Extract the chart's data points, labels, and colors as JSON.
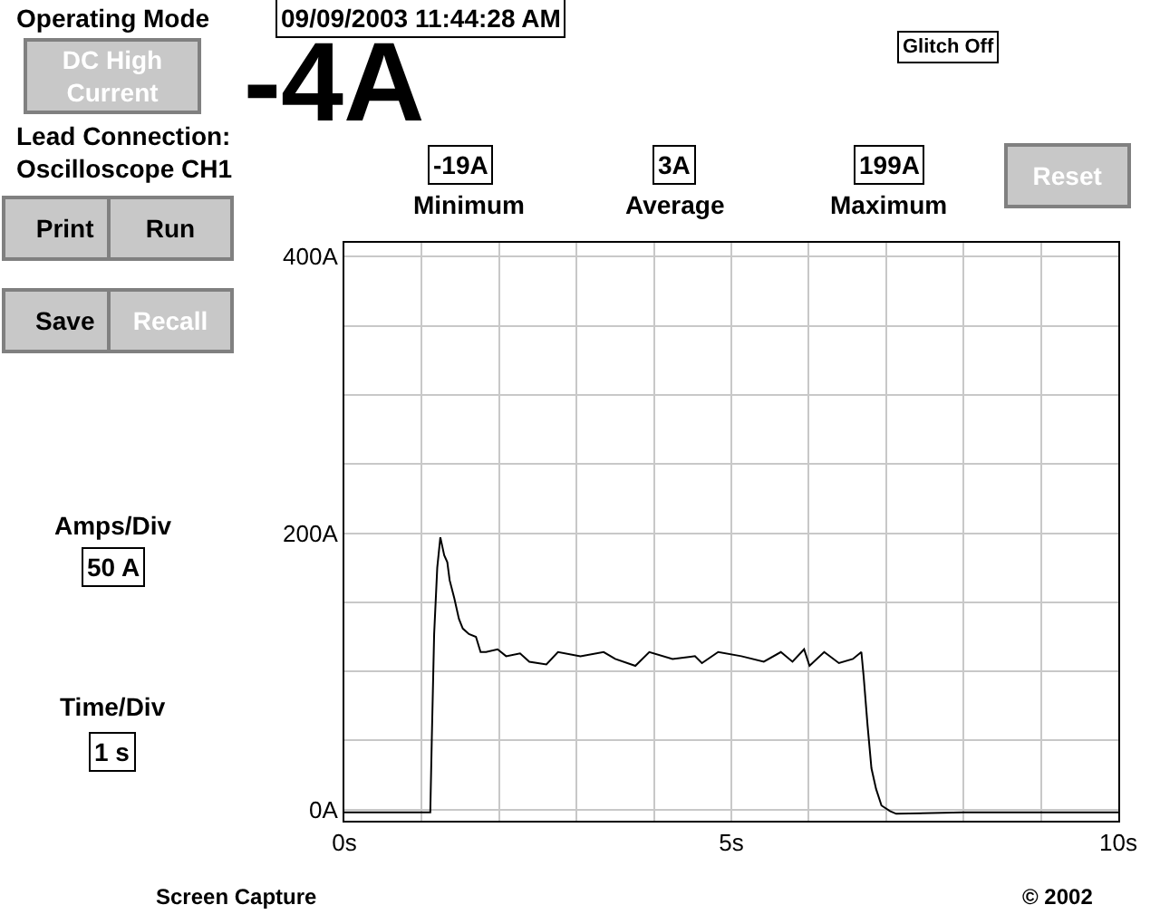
{
  "chart_data": {
    "type": "line",
    "title": "-4A",
    "x": [
      0,
      0.5,
      1.11,
      1.13,
      1.16,
      1.2,
      1.24,
      1.29,
      1.33,
      1.36,
      1.42,
      1.48,
      1.53,
      1.61,
      1.7,
      1.76,
      1.83,
      1.98,
      2.09,
      2.27,
      2.39,
      2.61,
      2.76,
      3.05,
      3.35,
      3.5,
      3.76,
      3.94,
      4.24,
      4.53,
      4.62,
      4.83,
      5.13,
      5.42,
      5.64,
      5.79,
      5.94,
      6.01,
      6.2,
      6.39,
      6.57,
      6.68,
      6.71,
      6.76,
      6.81,
      6.87,
      6.94,
      7.05,
      7.13,
      8,
      9,
      10
    ],
    "series": [
      {
        "color": "#000000",
        "values": [
          -2,
          -2,
          -2,
          52,
          127,
          175,
          197,
          184,
          179,
          166,
          153,
          138,
          131,
          127,
          125,
          114,
          114,
          116,
          111,
          113,
          107,
          105,
          114,
          111,
          114,
          109,
          104,
          114,
          109,
          111,
          106,
          114,
          111,
          107,
          114,
          107,
          116,
          104,
          114,
          106,
          109,
          114,
          96,
          61,
          30,
          15,
          3,
          -1,
          -3,
          -2,
          -2,
          -2
        ]
      }
    ],
    "xlim": [
      0,
      10
    ],
    "ylim": [
      -8,
      410
    ],
    "xticks": [
      {
        "value": 0,
        "label": "0s"
      },
      {
        "value": 1,
        "label": null
      },
      {
        "value": 2,
        "label": null
      },
      {
        "value": 3,
        "label": null
      },
      {
        "value": 4,
        "label": null
      },
      {
        "value": 5,
        "label": "5s"
      },
      {
        "value": 6,
        "label": null
      },
      {
        "value": 7,
        "label": null
      },
      {
        "value": 8,
        "label": null
      },
      {
        "value": 9,
        "label": null
      },
      {
        "value": 10,
        "label": "10s"
      }
    ],
    "yticks": [
      {
        "value": 0,
        "label": "0A"
      },
      {
        "value": 50,
        "label": null
      },
      {
        "value": 100,
        "label": null
      },
      {
        "value": 150,
        "label": null
      },
      {
        "value": 200,
        "label": "200A"
      },
      {
        "value": 250,
        "label": null
      },
      {
        "value": 300,
        "label": null
      },
      {
        "value": 350,
        "label": null
      },
      {
        "value": 400,
        "label": "400A"
      }
    ],
    "grid": true,
    "marker": "none",
    "line_style": "solid",
    "annotations": [
      "Operating Mode",
      "09/09/2003 11:44:28 AM",
      "DC High Current",
      "Lead Connection:",
      "Oscilloscope CH1",
      "Glitch Off",
      "-19A",
      "Minimum",
      "3A",
      "Average",
      "199A",
      "Maximum",
      "Reset",
      "Print",
      "Run",
      "Save",
      "Recall",
      "Amps/Div",
      "50 A",
      "Time/Div",
      "1 s",
      "Screen Capture",
      "© 2002"
    ]
  }
}
